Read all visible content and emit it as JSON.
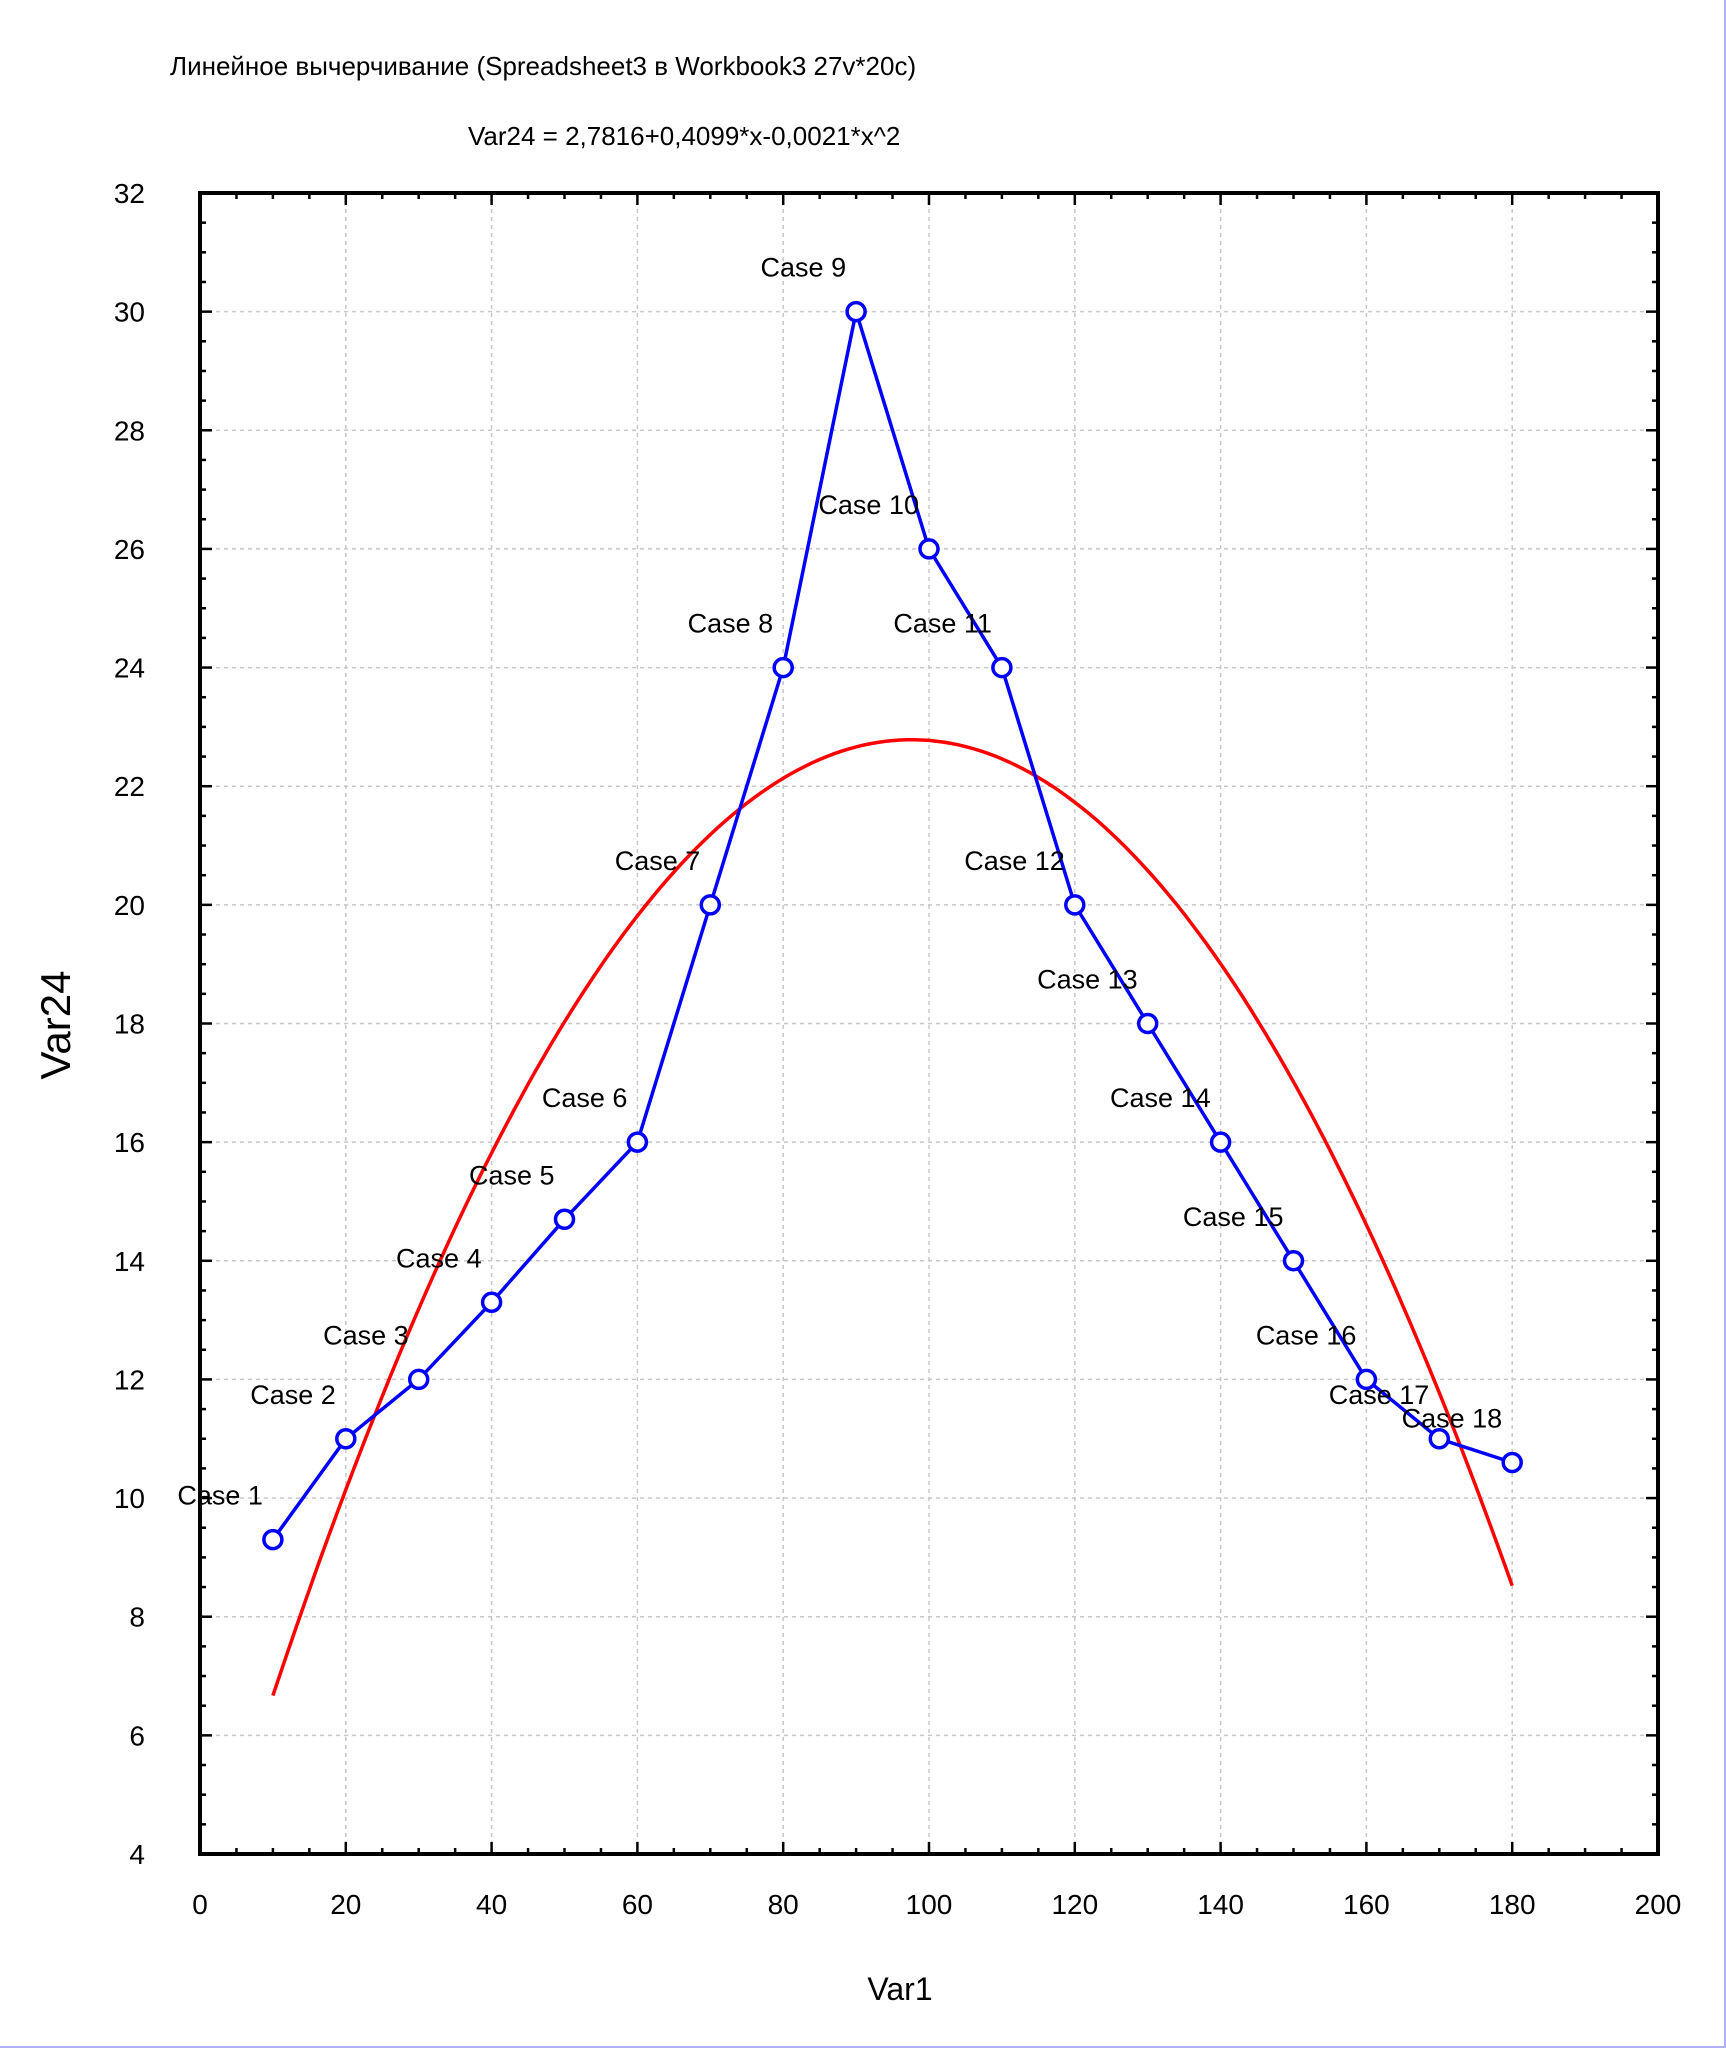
{
  "chart_data": {
    "type": "line",
    "title": "Линейное вычерчивание (Spreadsheet3 в Workbook3 27v*20c)",
    "subtitle": "Var24 = 2,7816+0,4099*x-0,0021*x^2",
    "xlabel": "Var1",
    "ylabel": "Var24",
    "xlim": [
      0,
      200
    ],
    "ylim": [
      4,
      32
    ],
    "x_ticks": [
      "0",
      "20",
      "40",
      "60",
      "80",
      "100",
      "120",
      "140",
      "160",
      "180",
      "200"
    ],
    "y_ticks": [
      "4",
      "6",
      "8",
      "10",
      "12",
      "14",
      "16",
      "18",
      "20",
      "22",
      "24",
      "26",
      "28",
      "30",
      "32"
    ],
    "grid": true,
    "series": [
      {
        "type": "line+markers",
        "color": "#0000ff",
        "marker_fill": "#ffffff",
        "labels": [
          "Case 1",
          "Case 2",
          "Case 3",
          "Case 4",
          "Case 5",
          "Case 6",
          "Case 7",
          "Case 8",
          "Case 9",
          "Case 10",
          "Case 11",
          "Case 12",
          "Case 13",
          "Case 14",
          "Case 15",
          "Case 16",
          "Case 17",
          "Case 18"
        ],
        "x": [
          10,
          20,
          30,
          40,
          50,
          60,
          70,
          80,
          90,
          100,
          110,
          120,
          130,
          140,
          150,
          160,
          170,
          180
        ],
        "y": [
          9.3,
          11,
          12,
          13.3,
          14.7,
          16,
          20,
          24,
          30,
          26,
          24,
          20,
          18,
          16,
          14,
          12,
          11,
          10.6
        ]
      },
      {
        "type": "fit-curve",
        "color": "#ff0000",
        "coefficients": [
          2.7816,
          0.4099,
          -0.0021
        ],
        "x_range": [
          10,
          180
        ]
      }
    ]
  }
}
